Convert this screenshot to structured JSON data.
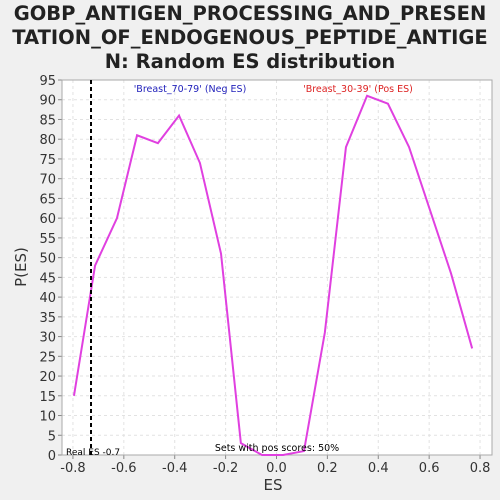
{
  "chart_data": {
    "type": "line",
    "title": [
      "GOBP_ANTIGEN_PROCESSING_AND_PRESEN",
      "TATION_OF_ENDOGENOUS_PEPTIDE_ANTIGE",
      "N: Random ES distribution"
    ],
    "xlabel": "ES",
    "ylabel": "P(ES)",
    "x": [
      -0.796,
      -0.713,
      -0.627,
      -0.548,
      -0.466,
      -0.383,
      -0.301,
      -0.218,
      -0.14,
      -0.057,
      0.026,
      0.108,
      0.19,
      0.273,
      0.356,
      0.438,
      0.521,
      0.686,
      0.769
    ],
    "series": [
      {
        "name": "P(ES)",
        "color": "#e040e0",
        "values": [
          15,
          48,
          60,
          81,
          79,
          86,
          74,
          51,
          3,
          0,
          0,
          1,
          31,
          78,
          91,
          89,
          78,
          46,
          27
        ]
      }
    ],
    "xlim": [
      -0.843,
      0.847
    ],
    "ylim": [
      0,
      95
    ],
    "xticks": [
      -0.8,
      -0.6,
      -0.4,
      -0.2,
      {
        "value": 0,
        "label": "0.0"
      },
      0.2,
      0.4,
      0.6,
      0.8
    ],
    "yticks": [
      0,
      5,
      10,
      15,
      20,
      25,
      30,
      35,
      40,
      45,
      50,
      55,
      60,
      65,
      70,
      75,
      80,
      85,
      90,
      95
    ],
    "grid": true,
    "real_es": -0.729,
    "real_es_label": "Real ES -0.7",
    "neg_label": "'Breast_70-79' (Neg ES)",
    "neg_color": "#2222bb",
    "pos_label": "'Breast_30-39' (Pos ES)",
    "pos_color": "#dd2222",
    "pos_scores_label": "Sets with pos scores: 50%"
  }
}
